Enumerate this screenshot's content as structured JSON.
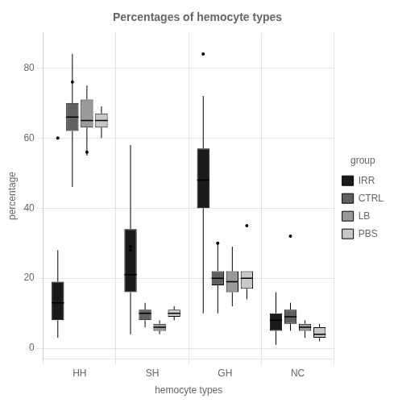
{
  "chart_data": {
    "type": "box",
    "title": "Percentages of hemocyte types",
    "x_label": "hemocyte types",
    "y_label": "percentage",
    "legend_title": "group",
    "legend": "right",
    "grid": true,
    "categories": [
      "HH",
      "SH",
      "GH",
      "NC"
    ],
    "ylim": [
      -3,
      90
    ],
    "yticks": [
      0,
      20,
      40,
      60,
      80
    ],
    "series": [
      {
        "name": "IRR",
        "color": "#1a1a1a",
        "values": [
          {
            "whislo": 3,
            "q1": 8,
            "med": 13,
            "q3": 19,
            "whishi": 28,
            "fliers": [
              60
            ]
          },
          {
            "whislo": 4,
            "q1": 16,
            "med": 21,
            "q3": 34,
            "whishi": 58,
            "fliers": [
              29,
              28
            ]
          },
          {
            "whislo": 10,
            "q1": 40,
            "med": 48,
            "q3": 57,
            "whishi": 72,
            "fliers": [
              84
            ]
          },
          {
            "whislo": 1,
            "q1": 5,
            "med": 8,
            "q3": 10,
            "whishi": 16,
            "fliers": []
          }
        ]
      },
      {
        "name": "CTRL",
        "color": "#606060",
        "values": [
          {
            "whislo": 46,
            "q1": 62,
            "med": 66,
            "q3": 70,
            "whishi": 84,
            "fliers": [
              76
            ]
          },
          {
            "whislo": 6,
            "q1": 8,
            "med": 10,
            "q3": 11,
            "whishi": 13,
            "fliers": []
          },
          {
            "whislo": 10,
            "q1": 18,
            "med": 20,
            "q3": 22,
            "whishi": 30,
            "fliers": [
              30
            ]
          },
          {
            "whislo": 5,
            "q1": 7,
            "med": 9,
            "q3": 11,
            "whishi": 13,
            "fliers": [
              32
            ]
          }
        ]
      },
      {
        "name": "LB",
        "color": "#9a9a9a",
        "values": [
          {
            "whislo": 55,
            "q1": 63,
            "med": 65,
            "q3": 71,
            "whishi": 75,
            "fliers": [
              56
            ]
          },
          {
            "whislo": 4,
            "q1": 5,
            "med": 6,
            "q3": 7,
            "whishi": 8,
            "fliers": []
          },
          {
            "whislo": 12,
            "q1": 16,
            "med": 19,
            "q3": 22,
            "whishi": 29,
            "fliers": []
          },
          {
            "whislo": 3,
            "q1": 5,
            "med": 6,
            "q3": 7,
            "whishi": 8,
            "fliers": []
          }
        ]
      },
      {
        "name": "PBS",
        "color": "#c8c8c8",
        "values": [
          {
            "whislo": 60,
            "q1": 63,
            "med": 65,
            "q3": 67,
            "whishi": 69,
            "fliers": []
          },
          {
            "whislo": 8,
            "q1": 9,
            "med": 10,
            "q3": 11,
            "whishi": 12,
            "fliers": []
          },
          {
            "whislo": 14,
            "q1": 17,
            "med": 20,
            "q3": 22,
            "whishi": 22,
            "fliers": [
              35
            ]
          },
          {
            "whislo": 2,
            "q1": 3,
            "med": 4,
            "q3": 6,
            "whishi": 7,
            "fliers": []
          }
        ]
      }
    ]
  }
}
